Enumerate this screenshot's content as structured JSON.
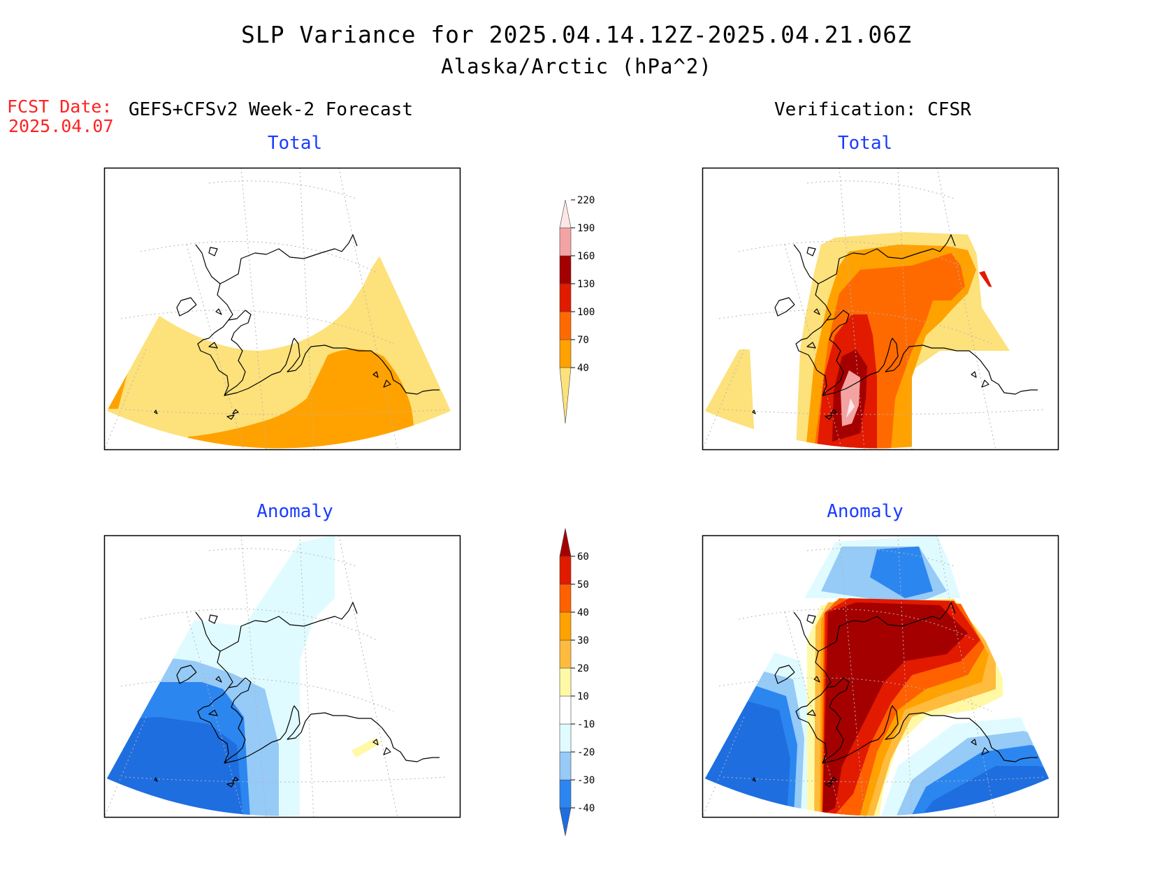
{
  "header": {
    "title": "SLP Variance for 2025.04.14.12Z-2025.04.21.06Z",
    "subtitle": "Alaska/Arctic (hPa^2)",
    "fcst_label": "FCST Date:",
    "fcst_date": "2025.04.07",
    "forecast_model": "GEFS+CFSv2 Week-2 Forecast",
    "verification": "Verification: CFSR"
  },
  "panels": {
    "fcst_total_title": "Total",
    "verif_total_title": "Total",
    "fcst_anom_title": "Anomaly",
    "verif_anom_title": "Anomaly"
  },
  "colorbars": {
    "total": {
      "labels": [
        "40",
        "70",
        "100",
        "130",
        "160",
        "190",
        "220"
      ],
      "colors": [
        "#fde17a",
        "#ffa200",
        "#ff6a00",
        "#e11a00",
        "#a50000",
        "#f4a3a3",
        "#fde6e6"
      ]
    },
    "anomaly": {
      "labels": [
        "-40",
        "-30",
        "-20",
        "-10",
        "10",
        "20",
        "30",
        "40",
        "50",
        "60"
      ],
      "colors": [
        "#1e6ee0",
        "#2c86f0",
        "#96caf7",
        "#e0fbff",
        "#ffffff",
        "#fff9a6",
        "#ffbb3d",
        "#ffa200",
        "#ff6000",
        "#e11a00",
        "#a50000"
      ]
    }
  }
}
